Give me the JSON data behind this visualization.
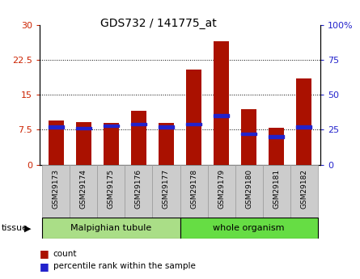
{
  "title": "GDS732 / 141775_at",
  "samples": [
    "GSM29173",
    "GSM29174",
    "GSM29175",
    "GSM29176",
    "GSM29177",
    "GSM29178",
    "GSM29179",
    "GSM29180",
    "GSM29181",
    "GSM29182"
  ],
  "counts": [
    9.5,
    9.2,
    9.0,
    11.5,
    9.0,
    20.5,
    26.5,
    12.0,
    8.0,
    18.5
  ],
  "percentiles": [
    27,
    26,
    28,
    29,
    27,
    29,
    35,
    22,
    20,
    27
  ],
  "tissue_groups": [
    {
      "label": "Malpighian tubule",
      "start": 0,
      "end": 4,
      "color": "#aade87"
    },
    {
      "label": "whole organism",
      "start": 5,
      "end": 9,
      "color": "#66dd44"
    }
  ],
  "ylim_left": [
    0,
    30
  ],
  "ylim_right": [
    0,
    100
  ],
  "yticks_left": [
    0,
    7.5,
    15,
    22.5,
    30
  ],
  "yticks_right": [
    0,
    25,
    50,
    75,
    100
  ],
  "bar_color": "#aa1100",
  "percentile_color": "#2222cc",
  "bar_width": 0.55,
  "ylabel_left_color": "#cc2200",
  "ylabel_right_color": "#2222cc",
  "legend_count_label": "count",
  "legend_pct_label": "percentile rank within the sample",
  "tissue_label": "tissue",
  "dotted_yticks": [
    7.5,
    15,
    22.5
  ]
}
